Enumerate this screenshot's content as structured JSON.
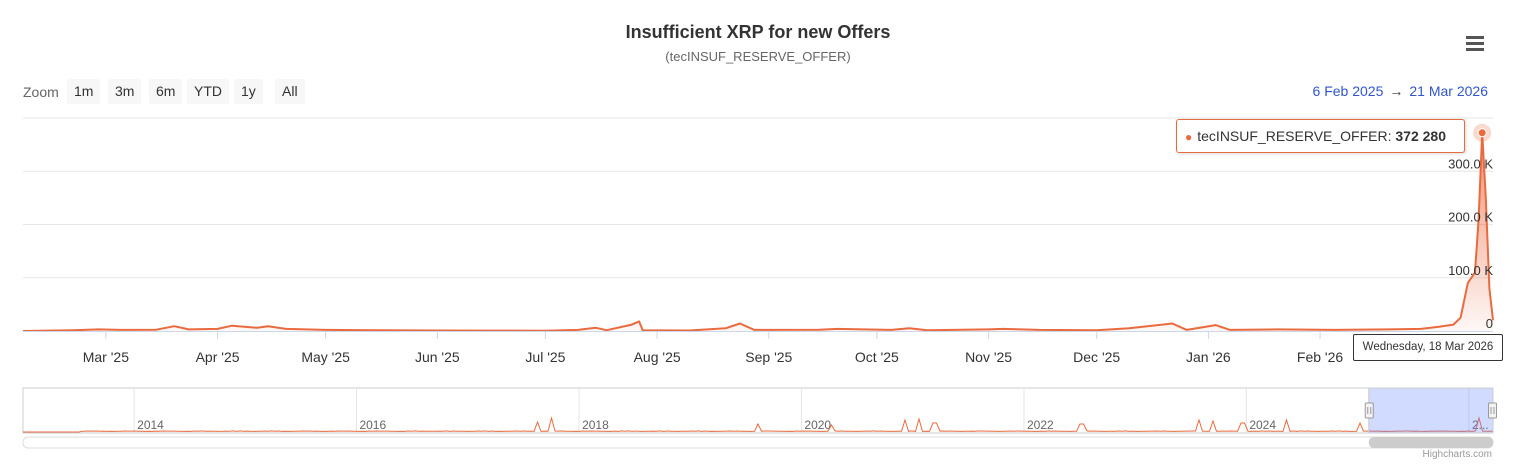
{
  "chart_data": {
    "type": "area",
    "title": "Insufficient XRP for new Offers",
    "subtitle": "(tecINSUF_RESERVE_OFFER)",
    "series": [
      {
        "name": "tecINSUF_RESERVE_OFFER",
        "color": "#ea6a3f",
        "points": [
          [
            "2025-02-06",
            0
          ],
          [
            "2025-02-20",
            1500
          ],
          [
            "2025-02-27",
            3000
          ],
          [
            "2025-03-05",
            2000
          ],
          [
            "2025-03-15",
            2500
          ],
          [
            "2025-03-20",
            9000
          ],
          [
            "2025-03-24",
            3000
          ],
          [
            "2025-04-01",
            4000
          ],
          [
            "2025-04-05",
            10000
          ],
          [
            "2025-04-12",
            6000
          ],
          [
            "2025-04-15",
            9000
          ],
          [
            "2025-04-20",
            4000
          ],
          [
            "2025-05-01",
            2000
          ],
          [
            "2025-05-15",
            1500
          ],
          [
            "2025-06-01",
            1000
          ],
          [
            "2025-06-15",
            800
          ],
          [
            "2025-07-01",
            600
          ],
          [
            "2025-07-10",
            2000
          ],
          [
            "2025-07-15",
            6000
          ],
          [
            "2025-07-18",
            1500
          ],
          [
            "2025-07-25",
            12000
          ],
          [
            "2025-07-27",
            18000
          ],
          [
            "2025-07-28",
            1500
          ],
          [
            "2025-08-10",
            1000
          ],
          [
            "2025-08-20",
            5000
          ],
          [
            "2025-08-24",
            14000
          ],
          [
            "2025-08-28",
            2000
          ],
          [
            "2025-09-15",
            2500
          ],
          [
            "2025-09-20",
            4000
          ],
          [
            "2025-10-05",
            2000
          ],
          [
            "2025-10-10",
            5000
          ],
          [
            "2025-10-15",
            1500
          ],
          [
            "2025-11-01",
            3000
          ],
          [
            "2025-11-05",
            4000
          ],
          [
            "2025-11-15",
            2000
          ],
          [
            "2025-12-01",
            1500
          ],
          [
            "2025-12-10",
            5000
          ],
          [
            "2025-12-22",
            14000
          ],
          [
            "2025-12-26",
            2000
          ],
          [
            "2026-01-03",
            11000
          ],
          [
            "2026-01-07",
            2000
          ],
          [
            "2026-01-20",
            3000
          ],
          [
            "2026-02-05",
            2000
          ],
          [
            "2026-02-20",
            3000
          ],
          [
            "2026-03-01",
            4000
          ],
          [
            "2026-03-06",
            8000
          ],
          [
            "2026-03-10",
            12000
          ],
          [
            "2026-03-12",
            25000
          ],
          [
            "2026-03-14",
            90000
          ],
          [
            "2026-03-16",
            110000
          ],
          [
            "2026-03-17",
            210000
          ],
          [
            "2026-03-18",
            372280
          ],
          [
            "2026-03-19",
            250000
          ],
          [
            "2026-03-20",
            80000
          ],
          [
            "2026-03-21",
            20000
          ]
        ]
      }
    ],
    "x_range": [
      "2025-02-06",
      "2026-03-21"
    ],
    "x_ticks": [
      {
        "date": "2025-03-01",
        "label": "Mar '25"
      },
      {
        "date": "2025-04-01",
        "label": "Apr '25"
      },
      {
        "date": "2025-05-01",
        "label": "May '25"
      },
      {
        "date": "2025-06-01",
        "label": "Jun '25"
      },
      {
        "date": "2025-07-01",
        "label": "Jul '25"
      },
      {
        "date": "2025-08-01",
        "label": "Aug '25"
      },
      {
        "date": "2025-09-01",
        "label": "Sep '25"
      },
      {
        "date": "2025-10-01",
        "label": "Oct '25"
      },
      {
        "date": "2025-11-01",
        "label": "Nov '25"
      },
      {
        "date": "2025-12-01",
        "label": "Dec '25"
      },
      {
        "date": "2026-01-01",
        "label": "Jan '26"
      },
      {
        "date": "2026-02-01",
        "label": "Feb '26"
      }
    ],
    "ylim": [
      0,
      400000
    ],
    "y_ticks": [
      {
        "value": 0,
        "label": "0"
      },
      {
        "value": 100000,
        "label": "100.0 K"
      },
      {
        "value": 200000,
        "label": "200.0 K"
      },
      {
        "value": 300000,
        "label": "300.0 K"
      }
    ],
    "grid": true,
    "legend": "none",
    "tooltip": {
      "date": "2026-03-18",
      "series": "tecINSUF_RESERVE_OFFER",
      "value": "372 280",
      "x_label": "Wednesday, 18 Mar 2026"
    },
    "navigator": {
      "range": [
        "2013-01-01",
        "2026-03-21"
      ],
      "ticks": [
        {
          "year": 2014,
          "label": "2014"
        },
        {
          "year": 2016,
          "label": "2016"
        },
        {
          "year": 2018,
          "label": "2018"
        },
        {
          "year": 2020,
          "label": "2020"
        },
        {
          "year": 2022,
          "label": "2022"
        },
        {
          "year": 2024,
          "label": "2024"
        },
        {
          "year": 2026,
          "label": "2..."
        }
      ],
      "selection": [
        "2025-02-06",
        "2026-03-21"
      ]
    }
  },
  "zoom": {
    "label": "Zoom",
    "buttons": [
      "1m",
      "3m",
      "6m",
      "YTD",
      "1y",
      "All"
    ]
  },
  "date_range": {
    "from": "6 Feb 2025",
    "arrow": "→",
    "to": "21 Mar 2026"
  },
  "credits": "Highcharts.com"
}
